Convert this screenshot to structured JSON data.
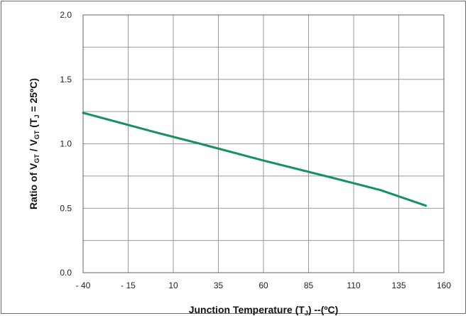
{
  "chart_data": {
    "type": "line",
    "title": "",
    "xlabel_main": "Junction Temperature (T",
    "xlabel_sub": "J",
    "xlabel_tail": ") --(ºC)",
    "ylabel": {
      "p1": "Ratio of V",
      "s1": "GT",
      "p2": " / V",
      "s2": "GT",
      "p3": " (T",
      "s3": "J",
      "p4": " = 25ºC)"
    },
    "xlim": [
      -40,
      160
    ],
    "ylim": [
      0,
      2.0
    ],
    "x_ticks": [
      -40,
      -15,
      10,
      35,
      60,
      85,
      110,
      135,
      160
    ],
    "x_tick_labels": [
      "- 40",
      "- 15",
      "10",
      "35",
      "60",
      "85",
      "110",
      "135",
      "160"
    ],
    "y_ticks": [
      0,
      0.5,
      1.0,
      1.5,
      2.0
    ],
    "y_tick_labels": [
      "0.0",
      "0.5",
      "1.0",
      "1.5",
      "2.0"
    ],
    "y_grid_minor_step": 0.25,
    "grid": true,
    "series": [
      {
        "color": "#17925a",
        "x": [
          -40,
          0,
          25,
          60,
          100,
          125,
          150
        ],
        "y": [
          1.24,
          1.09,
          1.0,
          0.87,
          0.73,
          0.64,
          0.52
        ]
      }
    ]
  }
}
